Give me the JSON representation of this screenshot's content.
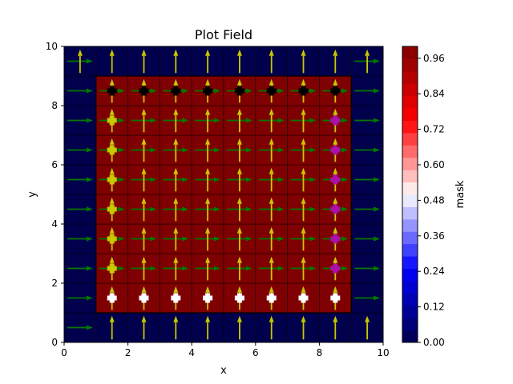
{
  "chart_data": {
    "type": "heatmap",
    "title": "Plot Field",
    "xlabel": "x",
    "ylabel": "y",
    "xlim": [
      0,
      10
    ],
    "ylim": [
      0,
      10
    ],
    "xticks": [
      "0",
      "2",
      "4",
      "6",
      "8",
      "10"
    ],
    "xtick_values": [
      0,
      2,
      4,
      6,
      8,
      10
    ],
    "yticks": [
      "0",
      "2",
      "4",
      "6",
      "8",
      "10"
    ],
    "ytick_values": [
      0,
      2,
      4,
      6,
      8,
      10
    ],
    "grid": false,
    "cell_size": 1,
    "mask": [
      [
        0,
        0,
        0,
        0,
        0,
        0,
        0,
        0,
        0,
        0
      ],
      [
        0,
        1,
        1,
        1,
        1,
        1,
        1,
        1,
        1,
        0
      ],
      [
        0,
        1,
        1,
        1,
        1,
        1,
        1,
        1,
        1,
        0
      ],
      [
        0,
        1,
        1,
        1,
        1,
        1,
        1,
        1,
        1,
        0
      ],
      [
        0,
        1,
        1,
        1,
        1,
        1,
        1,
        1,
        1,
        0
      ],
      [
        0,
        1,
        1,
        1,
        1,
        1,
        1,
        1,
        1,
        0
      ],
      [
        0,
        1,
        1,
        1,
        1,
        1,
        1,
        1,
        1,
        0
      ],
      [
        0,
        1,
        1,
        1,
        1,
        1,
        1,
        1,
        1,
        0
      ],
      [
        0,
        1,
        1,
        1,
        1,
        1,
        1,
        1,
        1,
        0
      ],
      [
        0,
        0,
        0,
        0,
        0,
        0,
        0,
        0,
        0,
        0
      ]
    ],
    "inner_region": {
      "x": [
        1,
        9
      ],
      "y": [
        1,
        9
      ]
    },
    "vector_field": {
      "arrow_length": 0.8,
      "yellow_vertical": {
        "color": "#c8c800",
        "direction": "up",
        "points": [
          {
            "x": 1.5,
            "y": 0.5
          },
          {
            "x": 2.5,
            "y": 0.5
          },
          {
            "x": 3.5,
            "y": 0.5
          },
          {
            "x": 4.5,
            "y": 0.5
          },
          {
            "x": 5.5,
            "y": 0.5
          },
          {
            "x": 6.5,
            "y": 0.5
          },
          {
            "x": 7.5,
            "y": 0.5
          },
          {
            "x": 8.5,
            "y": 0.5
          },
          {
            "x": 9.5,
            "y": 0.5
          },
          {
            "x": 1.5,
            "y": 1.5
          },
          {
            "x": 2.5,
            "y": 1.5
          },
          {
            "x": 3.5,
            "y": 1.5
          },
          {
            "x": 4.5,
            "y": 1.5
          },
          {
            "x": 5.5,
            "y": 1.5
          },
          {
            "x": 6.5,
            "y": 1.5
          },
          {
            "x": 7.5,
            "y": 1.5
          },
          {
            "x": 8.5,
            "y": 1.5
          },
          {
            "x": 1.5,
            "y": 2.5
          },
          {
            "x": 2.5,
            "y": 2.5
          },
          {
            "x": 3.5,
            "y": 2.5
          },
          {
            "x": 4.5,
            "y": 2.5
          },
          {
            "x": 5.5,
            "y": 2.5
          },
          {
            "x": 6.5,
            "y": 2.5
          },
          {
            "x": 7.5,
            "y": 2.5
          },
          {
            "x": 8.5,
            "y": 2.5
          },
          {
            "x": 1.5,
            "y": 3.5
          },
          {
            "x": 2.5,
            "y": 3.5
          },
          {
            "x": 3.5,
            "y": 3.5
          },
          {
            "x": 4.5,
            "y": 3.5
          },
          {
            "x": 5.5,
            "y": 3.5
          },
          {
            "x": 6.5,
            "y": 3.5
          },
          {
            "x": 7.5,
            "y": 3.5
          },
          {
            "x": 8.5,
            "y": 3.5
          },
          {
            "x": 1.5,
            "y": 4.5
          },
          {
            "x": 2.5,
            "y": 4.5
          },
          {
            "x": 3.5,
            "y": 4.5
          },
          {
            "x": 4.5,
            "y": 4.5
          },
          {
            "x": 5.5,
            "y": 4.5
          },
          {
            "x": 6.5,
            "y": 4.5
          },
          {
            "x": 7.5,
            "y": 4.5
          },
          {
            "x": 8.5,
            "y": 4.5
          },
          {
            "x": 1.5,
            "y": 5.5
          },
          {
            "x": 2.5,
            "y": 5.5
          },
          {
            "x": 3.5,
            "y": 5.5
          },
          {
            "x": 4.5,
            "y": 5.5
          },
          {
            "x": 5.5,
            "y": 5.5
          },
          {
            "x": 6.5,
            "y": 5.5
          },
          {
            "x": 7.5,
            "y": 5.5
          },
          {
            "x": 8.5,
            "y": 5.5
          },
          {
            "x": 1.5,
            "y": 6.5
          },
          {
            "x": 2.5,
            "y": 6.5
          },
          {
            "x": 3.5,
            "y": 6.5
          },
          {
            "x": 4.5,
            "y": 6.5
          },
          {
            "x": 5.5,
            "y": 6.5
          },
          {
            "x": 6.5,
            "y": 6.5
          },
          {
            "x": 7.5,
            "y": 6.5
          },
          {
            "x": 8.5,
            "y": 6.5
          },
          {
            "x": 1.5,
            "y": 7.5
          },
          {
            "x": 2.5,
            "y": 7.5
          },
          {
            "x": 3.5,
            "y": 7.5
          },
          {
            "x": 4.5,
            "y": 7.5
          },
          {
            "x": 5.5,
            "y": 7.5
          },
          {
            "x": 6.5,
            "y": 7.5
          },
          {
            "x": 7.5,
            "y": 7.5
          },
          {
            "x": 8.5,
            "y": 7.5
          },
          {
            "x": 1.5,
            "y": 8.5
          },
          {
            "x": 2.5,
            "y": 8.5
          },
          {
            "x": 3.5,
            "y": 8.5
          },
          {
            "x": 4.5,
            "y": 8.5
          },
          {
            "x": 5.5,
            "y": 8.5
          },
          {
            "x": 6.5,
            "y": 8.5
          },
          {
            "x": 7.5,
            "y": 8.5
          },
          {
            "x": 8.5,
            "y": 8.5
          },
          {
            "x": 0.5,
            "y": 9.5
          },
          {
            "x": 1.5,
            "y": 9.5
          },
          {
            "x": 2.5,
            "y": 9.5
          },
          {
            "x": 3.5,
            "y": 9.5
          },
          {
            "x": 4.5,
            "y": 9.5
          },
          {
            "x": 5.5,
            "y": 9.5
          },
          {
            "x": 6.5,
            "y": 9.5
          },
          {
            "x": 7.5,
            "y": 9.5
          },
          {
            "x": 8.5,
            "y": 9.5
          },
          {
            "x": 9.5,
            "y": 9.5
          }
        ]
      },
      "green_horizontal": {
        "color": "#007a00",
        "direction": "right",
        "points": [
          {
            "x": 0.5,
            "y": 0.5
          },
          {
            "x": 0.5,
            "y": 1.5
          },
          {
            "x": 9.5,
            "y": 1.5
          },
          {
            "x": 0.5,
            "y": 2.5
          },
          {
            "x": 1.5,
            "y": 2.5
          },
          {
            "x": 2.5,
            "y": 2.5
          },
          {
            "x": 3.5,
            "y": 2.5
          },
          {
            "x": 4.5,
            "y": 2.5
          },
          {
            "x": 5.5,
            "y": 2.5
          },
          {
            "x": 6.5,
            "y": 2.5
          },
          {
            "x": 7.5,
            "y": 2.5
          },
          {
            "x": 8.5,
            "y": 2.5
          },
          {
            "x": 9.5,
            "y": 2.5
          },
          {
            "x": 0.5,
            "y": 3.5
          },
          {
            "x": 1.5,
            "y": 3.5
          },
          {
            "x": 2.5,
            "y": 3.5
          },
          {
            "x": 3.5,
            "y": 3.5
          },
          {
            "x": 4.5,
            "y": 3.5
          },
          {
            "x": 5.5,
            "y": 3.5
          },
          {
            "x": 6.5,
            "y": 3.5
          },
          {
            "x": 7.5,
            "y": 3.5
          },
          {
            "x": 8.5,
            "y": 3.5
          },
          {
            "x": 9.5,
            "y": 3.5
          },
          {
            "x": 0.5,
            "y": 4.5
          },
          {
            "x": 1.5,
            "y": 4.5
          },
          {
            "x": 2.5,
            "y": 4.5
          },
          {
            "x": 3.5,
            "y": 4.5
          },
          {
            "x": 4.5,
            "y": 4.5
          },
          {
            "x": 5.5,
            "y": 4.5
          },
          {
            "x": 6.5,
            "y": 4.5
          },
          {
            "x": 7.5,
            "y": 4.5
          },
          {
            "x": 8.5,
            "y": 4.5
          },
          {
            "x": 9.5,
            "y": 4.5
          },
          {
            "x": 0.5,
            "y": 5.5
          },
          {
            "x": 1.5,
            "y": 5.5
          },
          {
            "x": 2.5,
            "y": 5.5
          },
          {
            "x": 3.5,
            "y": 5.5
          },
          {
            "x": 4.5,
            "y": 5.5
          },
          {
            "x": 5.5,
            "y": 5.5
          },
          {
            "x": 6.5,
            "y": 5.5
          },
          {
            "x": 7.5,
            "y": 5.5
          },
          {
            "x": 8.5,
            "y": 5.5
          },
          {
            "x": 9.5,
            "y": 5.5
          },
          {
            "x": 0.5,
            "y": 6.5
          },
          {
            "x": 1.5,
            "y": 6.5
          },
          {
            "x": 2.5,
            "y": 6.5
          },
          {
            "x": 3.5,
            "y": 6.5
          },
          {
            "x": 4.5,
            "y": 6.5
          },
          {
            "x": 5.5,
            "y": 6.5
          },
          {
            "x": 6.5,
            "y": 6.5
          },
          {
            "x": 7.5,
            "y": 6.5
          },
          {
            "x": 8.5,
            "y": 6.5
          },
          {
            "x": 9.5,
            "y": 6.5
          },
          {
            "x": 0.5,
            "y": 7.5
          },
          {
            "x": 1.5,
            "y": 7.5
          },
          {
            "x": 2.5,
            "y": 7.5
          },
          {
            "x": 3.5,
            "y": 7.5
          },
          {
            "x": 4.5,
            "y": 7.5
          },
          {
            "x": 5.5,
            "y": 7.5
          },
          {
            "x": 6.5,
            "y": 7.5
          },
          {
            "x": 7.5,
            "y": 7.5
          },
          {
            "x": 8.5,
            "y": 7.5
          },
          {
            "x": 9.5,
            "y": 7.5
          },
          {
            "x": 0.5,
            "y": 8.5
          },
          {
            "x": 1.5,
            "y": 8.5
          },
          {
            "x": 2.5,
            "y": 8.5
          },
          {
            "x": 3.5,
            "y": 8.5
          },
          {
            "x": 4.5,
            "y": 8.5
          },
          {
            "x": 5.5,
            "y": 8.5
          },
          {
            "x": 6.5,
            "y": 8.5
          },
          {
            "x": 7.5,
            "y": 8.5
          },
          {
            "x": 8.5,
            "y": 8.5
          },
          {
            "x": 9.5,
            "y": 8.5
          },
          {
            "x": 0.5,
            "y": 9.5
          },
          {
            "x": 9.5,
            "y": 9.5
          }
        ]
      }
    },
    "markers": [
      {
        "x": 1.5,
        "y": 1.5,
        "color": "#ffffff"
      },
      {
        "x": 2.5,
        "y": 1.5,
        "color": "#ffffff"
      },
      {
        "x": 3.5,
        "y": 1.5,
        "color": "#ffffff"
      },
      {
        "x": 4.5,
        "y": 1.5,
        "color": "#ffffff"
      },
      {
        "x": 5.5,
        "y": 1.5,
        "color": "#ffffff"
      },
      {
        "x": 6.5,
        "y": 1.5,
        "color": "#ffffff"
      },
      {
        "x": 7.5,
        "y": 1.5,
        "color": "#ffffff"
      },
      {
        "x": 8.5,
        "y": 1.5,
        "color": "#ffffff"
      },
      {
        "x": 1.5,
        "y": 8.5,
        "color": "#000000"
      },
      {
        "x": 2.5,
        "y": 8.5,
        "color": "#000000"
      },
      {
        "x": 3.5,
        "y": 8.5,
        "color": "#000000"
      },
      {
        "x": 4.5,
        "y": 8.5,
        "color": "#000000"
      },
      {
        "x": 5.5,
        "y": 8.5,
        "color": "#000000"
      },
      {
        "x": 6.5,
        "y": 8.5,
        "color": "#000000"
      },
      {
        "x": 7.5,
        "y": 8.5,
        "color": "#000000"
      },
      {
        "x": 8.5,
        "y": 8.5,
        "color": "#000000"
      },
      {
        "x": 1.5,
        "y": 2.5,
        "color": "#c8c800"
      },
      {
        "x": 1.5,
        "y": 3.5,
        "color": "#c8c800"
      },
      {
        "x": 1.5,
        "y": 4.5,
        "color": "#c8c800"
      },
      {
        "x": 1.5,
        "y": 5.5,
        "color": "#c8c800"
      },
      {
        "x": 1.5,
        "y": 6.5,
        "color": "#c8c800"
      },
      {
        "x": 1.5,
        "y": 7.5,
        "color": "#c8c800"
      },
      {
        "x": 8.5,
        "y": 2.5,
        "color": "#aa10aa"
      },
      {
        "x": 8.5,
        "y": 3.5,
        "color": "#aa10aa"
      },
      {
        "x": 8.5,
        "y": 4.5,
        "color": "#aa10aa"
      },
      {
        "x": 8.5,
        "y": 5.5,
        "color": "#aa10aa"
      },
      {
        "x": 8.5,
        "y": 6.5,
        "color": "#aa10aa"
      },
      {
        "x": 8.5,
        "y": 7.5,
        "color": "#aa10aa"
      }
    ],
    "colorbar": {
      "label": "mask",
      "range": [
        0,
        1
      ],
      "ticks": [
        "0.00",
        "0.12",
        "0.24",
        "0.36",
        "0.48",
        "0.60",
        "0.72",
        "0.84",
        "0.96"
      ],
      "tick_values": [
        0.0,
        0.12,
        0.24,
        0.36,
        0.48,
        0.6,
        0.72,
        0.84,
        0.96
      ],
      "levels": 24,
      "colormap": "seismic"
    },
    "colors": {
      "low": "#00004c",
      "high": "#7f0000",
      "cell_edge": "#000000"
    }
  }
}
